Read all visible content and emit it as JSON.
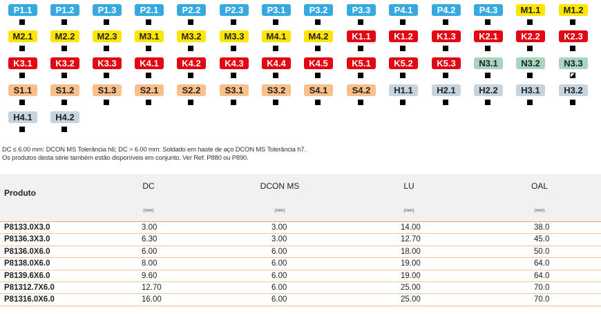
{
  "grid_rows": [
    [
      {
        "label": "P1.1",
        "group": "P",
        "mark": "full"
      },
      {
        "label": "P1.2",
        "group": "P",
        "mark": "full"
      },
      {
        "label": "P1.3",
        "group": "P",
        "mark": "full"
      },
      {
        "label": "P2.1",
        "group": "P",
        "mark": "full"
      },
      {
        "label": "P2.2",
        "group": "P",
        "mark": "full"
      },
      {
        "label": "P2.3",
        "group": "P",
        "mark": "full"
      },
      {
        "label": "P3.1",
        "group": "P",
        "mark": "full"
      },
      {
        "label": "P3.2",
        "group": "P",
        "mark": "full"
      },
      {
        "label": "P3.3",
        "group": "P",
        "mark": "full"
      },
      {
        "label": "P4.1",
        "group": "P",
        "mark": "full"
      },
      {
        "label": "P4.2",
        "group": "P",
        "mark": "full"
      },
      {
        "label": "P4.3",
        "group": "P",
        "mark": "full"
      },
      {
        "label": "M1.1",
        "group": "M",
        "mark": "full"
      },
      {
        "label": "M1.2",
        "group": "M",
        "mark": "full"
      }
    ],
    [
      {
        "label": "M2.1",
        "group": "M",
        "mark": "full"
      },
      {
        "label": "M2.2",
        "group": "M",
        "mark": "full"
      },
      {
        "label": "M2.3",
        "group": "M",
        "mark": "full"
      },
      {
        "label": "M3.1",
        "group": "M",
        "mark": "full"
      },
      {
        "label": "M3.2",
        "group": "M",
        "mark": "full"
      },
      {
        "label": "M3.3",
        "group": "M",
        "mark": "full"
      },
      {
        "label": "M4.1",
        "group": "M",
        "mark": "full"
      },
      {
        "label": "M4.2",
        "group": "M",
        "mark": "full"
      },
      {
        "label": "K1.1",
        "group": "K",
        "mark": "full"
      },
      {
        "label": "K1.2",
        "group": "K",
        "mark": "full"
      },
      {
        "label": "K1.3",
        "group": "K",
        "mark": "full"
      },
      {
        "label": "K2.1",
        "group": "K",
        "mark": "full"
      },
      {
        "label": "K2.2",
        "group": "K",
        "mark": "full"
      },
      {
        "label": "K2.3",
        "group": "K",
        "mark": "full"
      }
    ],
    [
      {
        "label": "K3.1",
        "group": "K",
        "mark": "full"
      },
      {
        "label": "K3.2",
        "group": "K",
        "mark": "full"
      },
      {
        "label": "K3.3",
        "group": "K",
        "mark": "full"
      },
      {
        "label": "K4.1",
        "group": "K",
        "mark": "full"
      },
      {
        "label": "K4.2",
        "group": "K",
        "mark": "full"
      },
      {
        "label": "K4.3",
        "group": "K",
        "mark": "full"
      },
      {
        "label": "K4.4",
        "group": "K",
        "mark": "full"
      },
      {
        "label": "K4.5",
        "group": "K",
        "mark": "full"
      },
      {
        "label": "K5.1",
        "group": "K",
        "mark": "full"
      },
      {
        "label": "K5.2",
        "group": "K",
        "mark": "full"
      },
      {
        "label": "K5.3",
        "group": "K",
        "mark": "full"
      },
      {
        "label": "N3.1",
        "group": "N",
        "mark": "full"
      },
      {
        "label": "N3.2",
        "group": "N",
        "mark": "full"
      },
      {
        "label": "N3.3",
        "group": "N",
        "mark": "half"
      }
    ],
    [
      {
        "label": "S1.1",
        "group": "S",
        "mark": "full"
      },
      {
        "label": "S1.2",
        "group": "S",
        "mark": "full"
      },
      {
        "label": "S1.3",
        "group": "S",
        "mark": "full"
      },
      {
        "label": "S2.1",
        "group": "S",
        "mark": "full"
      },
      {
        "label": "S2.2",
        "group": "S",
        "mark": "full"
      },
      {
        "label": "S3.1",
        "group": "S",
        "mark": "full"
      },
      {
        "label": "S3.2",
        "group": "S",
        "mark": "full"
      },
      {
        "label": "S4.1",
        "group": "S",
        "mark": "full"
      },
      {
        "label": "S4.2",
        "group": "S",
        "mark": "full"
      },
      {
        "label": "H1.1",
        "group": "H",
        "mark": "full"
      },
      {
        "label": "H2.1",
        "group": "H",
        "mark": "full"
      },
      {
        "label": "H2.2",
        "group": "H",
        "mark": "full"
      },
      {
        "label": "H3.1",
        "group": "H",
        "mark": "full"
      },
      {
        "label": "H3.2",
        "group": "H",
        "mark": "full"
      }
    ],
    [
      {
        "label": "H4.1",
        "group": "H",
        "mark": "full"
      },
      {
        "label": "H4.2",
        "group": "H",
        "mark": "full"
      }
    ]
  ],
  "group_colors": {
    "P": "#36a9e1",
    "M": "#ffe500",
    "K": "#e30613",
    "N": "#a8d5c0",
    "S": "#f9c08c",
    "H": "#c6d4df"
  },
  "notes": {
    "line1": "DC ≤ 6.00 mm: DCON MS Tolerância h6; DC > 6.00 mm: Soldado em haste de aço DCON MS Tolerância h7.",
    "line2": "Os produtos desta série também estão disponíveis em conjunto. Ver Ref. P880 ou P890."
  },
  "table": {
    "product_header": "Produto",
    "columns": [
      {
        "name": "DC",
        "unit": "(mm)"
      },
      {
        "name": "DCON MS",
        "unit": "(mm)"
      },
      {
        "name": "LU",
        "unit": "(mm)"
      },
      {
        "name": "OAL",
        "unit": "(mm)"
      }
    ],
    "rows": [
      {
        "produto": "P8133.0X3.0",
        "dc": "3.00",
        "dcon": "3.00",
        "lu": "14.00",
        "oal": "38.0"
      },
      {
        "produto": "P8136.3X3.0",
        "dc": "6.30",
        "dcon": "3.00",
        "lu": "12.70",
        "oal": "45.0"
      },
      {
        "produto": "P8136.0X6.0",
        "dc": "6.00",
        "dcon": "6.00",
        "lu": "18.00",
        "oal": "50.0"
      },
      {
        "produto": "P8138.0X6.0",
        "dc": "8.00",
        "dcon": "6.00",
        "lu": "19.00",
        "oal": "64.0"
      },
      {
        "produto": "P8139.6X6.0",
        "dc": "9.60",
        "dcon": "6.00",
        "lu": "19.00",
        "oal": "64.0"
      },
      {
        "produto": "P81312.7X6.0",
        "dc": "12.70",
        "dcon": "6.00",
        "lu": "25.00",
        "oal": "70.0"
      },
      {
        "produto": "P81316.0X6.0",
        "dc": "16.00",
        "dcon": "6.00",
        "lu": "25.00",
        "oal": "70.0"
      }
    ]
  }
}
